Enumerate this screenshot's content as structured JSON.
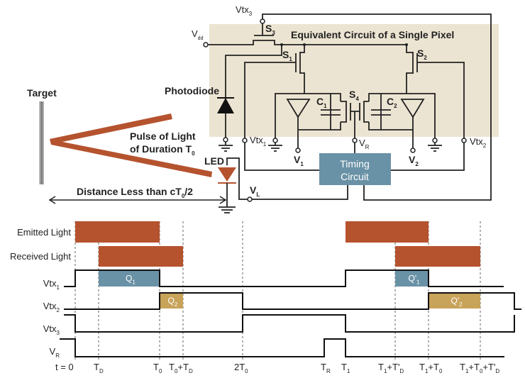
{
  "colors": {
    "beige": "#ece4d2",
    "light": "#b5532f",
    "charge1": "#6a92a6",
    "charge2": "#c8a35a",
    "timing": "#6a92a6"
  },
  "circuit": {
    "title": "Equivalent Circuit of a Single Pixel",
    "vdd": "V",
    "vdd_sub": "dd",
    "vtx3": "Vtx",
    "vtx3_sub": "3",
    "s3": "S",
    "s3_sub": "3",
    "s1": "S",
    "s1_sub": "1",
    "s2": "S",
    "s2_sub": "2",
    "s4": "S",
    "s4_sub": "4",
    "c1": "C",
    "c1_sub": "1",
    "c2": "C",
    "c2_sub": "2",
    "vtx1": "Vtx",
    "vtx1_sub": "1",
    "vtx2": "Vtx",
    "vtx2_sub": "2",
    "vr": "V",
    "vr_sub": "R",
    "v1": "V",
    "v1_sub": "1",
    "v2": "V",
    "v2_sub": "2",
    "vl": "V",
    "vl_sub": "L",
    "timing_line1": "Timing",
    "timing_line2": "Circuit",
    "photodiode": "Photodiode",
    "led": "LED"
  },
  "scene": {
    "target": "Target",
    "pulse_line1": "Pulse of Light",
    "pulse_line2": "of Duration T",
    "pulse_line2_sub": "0",
    "distance": "Distance Less than cT",
    "distance_sub": "0",
    "distance_tail": "/2"
  },
  "timing": {
    "rows": [
      {
        "label": "Emitted Light",
        "sub": ""
      },
      {
        "label": "Received Light",
        "sub": ""
      },
      {
        "label": "Vtx",
        "sub": "1"
      },
      {
        "label": "Vtx",
        "sub": "2"
      },
      {
        "label": "Vtx",
        "sub": "3"
      },
      {
        "label": "V",
        "sub": "R"
      }
    ],
    "charges": {
      "q1": "Q",
      "q1_sub": "1",
      "q2": "Q",
      "q2_sub": "2",
      "q1p": "Q'",
      "q1p_sub": "1",
      "q2p": "Q'",
      "q2p_sub": "2"
    },
    "ticks": [
      {
        "t": "t = 0",
        "sub": ""
      },
      {
        "t": "T",
        "sub": "D"
      },
      {
        "t": "T",
        "sub": "0"
      },
      {
        "t": "T",
        "sub": "0",
        "extra": "+T",
        "extra_sub": "D"
      },
      {
        "t": "2T",
        "sub": "0"
      },
      {
        "t": "T",
        "sub": "R"
      },
      {
        "t": "T",
        "sub": "1"
      },
      {
        "t": "T",
        "sub": "1",
        "extra": "+T'",
        "extra_sub": "D"
      },
      {
        "t": "T",
        "sub": "1",
        "extra": "+T",
        "extra_sub": "0"
      },
      {
        "t": "T",
        "sub": "1",
        "extra": "+T",
        "extra_sub": "0",
        "extra2": "+T'",
        "extra2_sub": "D"
      }
    ]
  }
}
